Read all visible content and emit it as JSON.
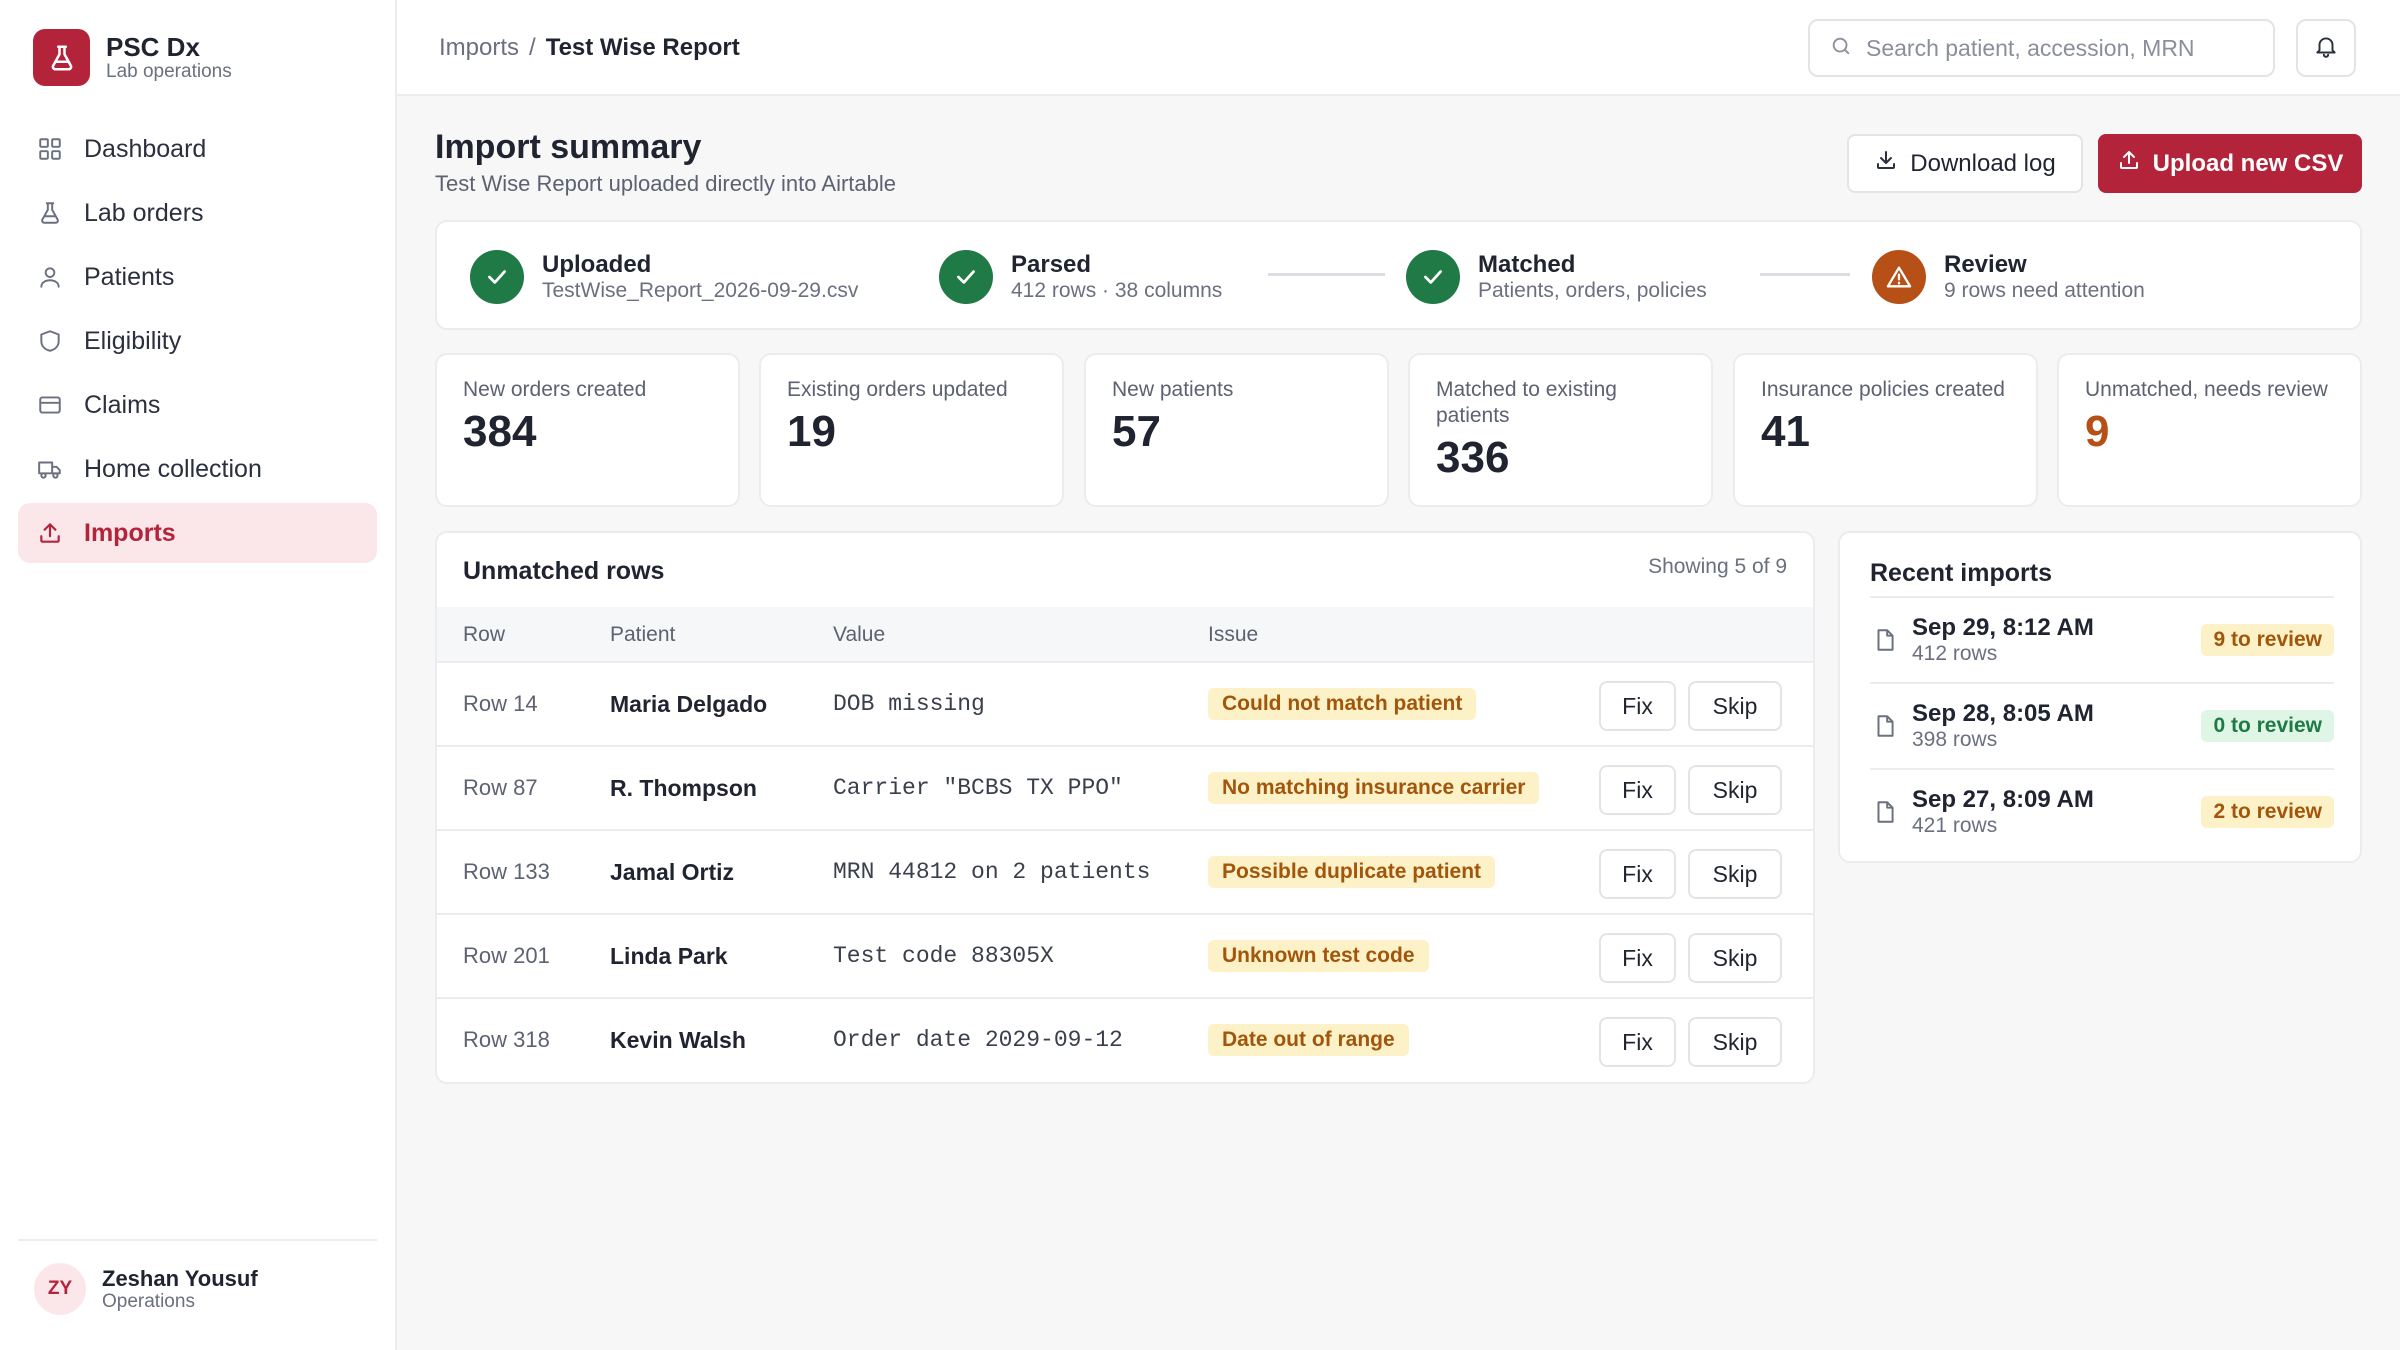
{
  "brand": {
    "name": "PSC Dx",
    "subtitle": "Lab operations"
  },
  "sidebar": {
    "items": [
      {
        "label": "Dashboard",
        "icon": "grid-icon"
      },
      {
        "label": "Lab orders",
        "icon": "flask-icon"
      },
      {
        "label": "Patients",
        "icon": "person-icon"
      },
      {
        "label": "Eligibility",
        "icon": "shield-icon"
      },
      {
        "label": "Claims",
        "icon": "card-icon"
      },
      {
        "label": "Home collection",
        "icon": "truck-icon"
      },
      {
        "label": "Imports",
        "icon": "upload-icon",
        "active": true
      }
    ]
  },
  "user": {
    "initials": "ZY",
    "name": "Zeshan Yousuf",
    "role": "Operations"
  },
  "topbar": {
    "breadcrumb_parent": "Imports",
    "breadcrumb_sep": "/",
    "breadcrumb_current": "Test Wise Report",
    "search_placeholder": "Search patient, accession, MRN"
  },
  "page": {
    "title": "Import summary",
    "subtitle": "Test Wise Report uploaded directly into Airtable",
    "download_label": "Download log",
    "upload_label": "Upload new CSV"
  },
  "steps": [
    {
      "title": "Uploaded",
      "sub": "TestWise_Report_2026-09-29.csv",
      "status": "done"
    },
    {
      "title": "Parsed",
      "sub": "412 rows · 38 columns",
      "status": "done"
    },
    {
      "title": "Matched",
      "sub": "Patients, orders, policies",
      "status": "done"
    },
    {
      "title": "Review",
      "sub": "9 rows need attention",
      "status": "warn"
    }
  ],
  "stats": [
    {
      "label": "New orders created",
      "value": "384"
    },
    {
      "label": "Existing orders updated",
      "value": "19"
    },
    {
      "label": "New patients",
      "value": "57"
    },
    {
      "label": "Matched to existing patients",
      "value": "336"
    },
    {
      "label": "Insurance policies created",
      "value": "41"
    },
    {
      "label": "Unmatched, needs review",
      "value": "9"
    }
  ],
  "unmatched": {
    "title": "Unmatched rows",
    "meta": "Showing 5 of 9",
    "columns": [
      "Row",
      "Patient",
      "Value",
      "Issue"
    ],
    "fix_label": "Fix",
    "skip_label": "Skip",
    "rows": [
      {
        "row": "Row 14",
        "patient": "Maria Delgado",
        "value": "DOB missing",
        "issue": "Could not match patient"
      },
      {
        "row": "Row 87",
        "patient": "R. Thompson",
        "value": "Carrier \"BCBS TX PPO\"",
        "issue": "No matching insurance carrier"
      },
      {
        "row": "Row 133",
        "patient": "Jamal Ortiz",
        "value": "MRN 44812 on 2 patients",
        "issue": "Possible duplicate patient"
      },
      {
        "row": "Row 201",
        "patient": "Linda Park",
        "value": "Test code 88305X",
        "issue": "Unknown test code"
      },
      {
        "row": "Row 318",
        "patient": "Kevin Walsh",
        "value": "Order date 2029-09-12",
        "issue": "Date out of range"
      }
    ]
  },
  "recent": {
    "title": "Recent imports",
    "items": [
      {
        "date": "Sep 29, 8:12 AM",
        "rows": "412 rows",
        "badge": "9 to review",
        "status": "warn"
      },
      {
        "date": "Sep 28, 8:05 AM",
        "rows": "398 rows",
        "badge": "0 to review",
        "status": "ok"
      },
      {
        "date": "Sep 27, 8:09 AM",
        "rows": "421 rows",
        "badge": "2 to review",
        "status": "warn"
      }
    ]
  },
  "colors": {
    "accent": "#b3243a",
    "success": "#1f7a45",
    "warning": "#b65016",
    "badge_bg": "#fdf1c7"
  }
}
